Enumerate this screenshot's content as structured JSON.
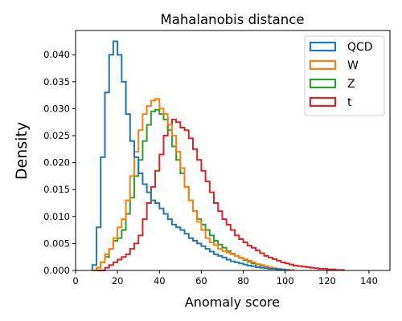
{
  "chart_data": {
    "type": "histogram",
    "title": "Mahalanobis distance",
    "xlabel": "Anomaly score",
    "ylabel": "Density",
    "xlim": [
      0,
      150
    ],
    "ylim": [
      0,
      0.0445
    ],
    "xticks": [
      "0",
      "20",
      "40",
      "60",
      "80",
      "100",
      "120",
      "140"
    ],
    "yticks": [
      "0.000",
      "0.005",
      "0.010",
      "0.015",
      "0.020",
      "0.025",
      "0.030",
      "0.035",
      "0.040"
    ],
    "grid": false,
    "legend_position": "top-right",
    "histtype": "step",
    "bin_start": 8,
    "bin_width": 2,
    "series": [
      {
        "name": "QCD",
        "color": "#1f77b4",
        "values": [
          0.001,
          0.008,
          0.021,
          0.033,
          0.04,
          0.0425,
          0.04,
          0.035,
          0.029,
          0.024,
          0.021,
          0.018,
          0.016,
          0.0145,
          0.013,
          0.0125,
          0.0115,
          0.0105,
          0.0095,
          0.0085,
          0.008,
          0.0075,
          0.0068,
          0.006,
          0.0055,
          0.005,
          0.0045,
          0.004,
          0.0035,
          0.003,
          0.0027,
          0.0024,
          0.002,
          0.0017,
          0.0015,
          0.0013,
          0.0011,
          0.0009,
          0.0008,
          0.0006,
          0.0005,
          0.0004,
          0.0003,
          0.0003,
          0.0002,
          0.00015,
          0.0001
        ]
      },
      {
        "name": "W",
        "color": "#ff7f0e",
        "values": [
          0,
          0.0005,
          0.0015,
          0.003,
          0.004,
          0.006,
          0.008,
          0.0095,
          0.013,
          0.0175,
          0.022,
          0.026,
          0.029,
          0.0305,
          0.0315,
          0.0318,
          0.03,
          0.029,
          0.027,
          0.025,
          0.022,
          0.019,
          0.0155,
          0.013,
          0.011,
          0.009,
          0.0075,
          0.006,
          0.0052,
          0.0047,
          0.004,
          0.0036,
          0.0033,
          0.003,
          0.0027,
          0.0024,
          0.0021,
          0.0018,
          0.0015,
          0.0012,
          0.001,
          0.0008,
          0.0006,
          0.0004,
          0.0003,
          0.0002,
          0.0001,
          0.0001
        ]
      },
      {
        "name": "Z",
        "color": "#2ca02c",
        "values": [
          0,
          0.0005,
          0.0015,
          0.0025,
          0.004,
          0.0055,
          0.006,
          0.0075,
          0.0105,
          0.0135,
          0.0175,
          0.0205,
          0.024,
          0.027,
          0.0295,
          0.0298,
          0.029,
          0.028,
          0.026,
          0.023,
          0.0205,
          0.018,
          0.0155,
          0.013,
          0.011,
          0.0095,
          0.0085,
          0.0075,
          0.0065,
          0.0055,
          0.0048,
          0.0042,
          0.0036,
          0.0031,
          0.0027,
          0.0023,
          0.0019,
          0.0016,
          0.0013,
          0.0011,
          0.0009,
          0.0007,
          0.0005,
          0.0004,
          0.0003,
          0.0002,
          0.0001
        ]
      },
      {
        "name": "t",
        "color": "#d62728",
        "values": [
          0,
          0,
          0,
          0.0005,
          0.001,
          0.0015,
          0.002,
          0.0025,
          0.003,
          0.004,
          0.005,
          0.0065,
          0.0095,
          0.0125,
          0.0155,
          0.0185,
          0.0215,
          0.025,
          0.027,
          0.028,
          0.0275,
          0.0265,
          0.026,
          0.0245,
          0.0225,
          0.0205,
          0.0185,
          0.0165,
          0.0145,
          0.0125,
          0.011,
          0.0095,
          0.0085,
          0.0075,
          0.0065,
          0.0058,
          0.0052,
          0.0046,
          0.0042,
          0.0037,
          0.0032,
          0.0027,
          0.0024,
          0.0021,
          0.0018,
          0.0015,
          0.0013,
          0.0011,
          0.0009,
          0.0008,
          0.0007,
          0.0006,
          0.0005,
          0.0004,
          0.0003,
          0.0003,
          0.0002,
          0.0002,
          0.0001,
          0.0001
        ]
      }
    ]
  }
}
